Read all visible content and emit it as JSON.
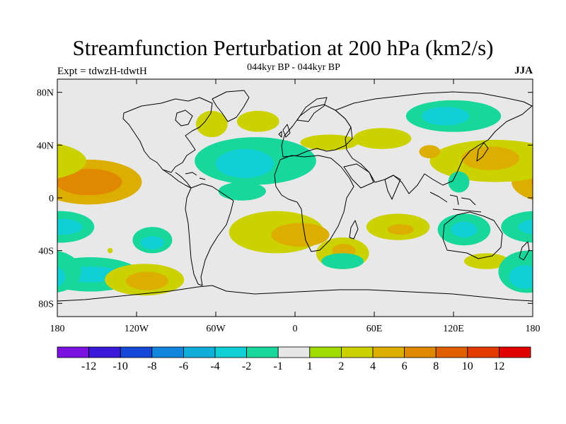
{
  "title": "Streamfunction Perturbation at 200 hPa (km2/s)",
  "subtitle": "044kyr BP - 044kyr BP",
  "experiment": "Expt = tdwzH-tdwtH",
  "season": "JJA",
  "chart_data": {
    "type": "contour_map",
    "projection": "cylindrical equidistant",
    "variable": "Streamfunction perturbation at 200 hPa",
    "units": "km2/s",
    "xlim": [
      -180,
      180
    ],
    "ylim": [
      -90,
      90
    ],
    "x_ticks": [
      {
        "value": -180,
        "label": "180"
      },
      {
        "value": -120,
        "label": "120W"
      },
      {
        "value": -60,
        "label": "60W"
      },
      {
        "value": 0,
        "label": "0"
      },
      {
        "value": 60,
        "label": "60E"
      },
      {
        "value": 120,
        "label": "120E"
      },
      {
        "value": 180,
        "label": "180"
      }
    ],
    "y_ticks": [
      {
        "value": 80,
        "label": "80N"
      },
      {
        "value": 40,
        "label": "40N"
      },
      {
        "value": 0,
        "label": "0"
      },
      {
        "value": -40,
        "label": "40S"
      },
      {
        "value": -80,
        "label": "80S"
      }
    ],
    "colorbar": {
      "labels": [
        "-12",
        "-10",
        "-8",
        "-6",
        "-4",
        "-2",
        "-1",
        "1",
        "2",
        "4",
        "6",
        "8",
        "10",
        "12"
      ],
      "colors": [
        "#7a12e0",
        "#3a18d8",
        "#1648d8",
        "#1285dd",
        "#10aedb",
        "#10cfd4",
        "#18d79a",
        "#e7e7e7",
        "#9fdc00",
        "#ccd100",
        "#dcae00",
        "#e08800",
        "#e06000",
        "#e23a00",
        "#e00000"
      ]
    },
    "anomalies": [
      {
        "lon": -156,
        "lat": 12,
        "rlon": 40,
        "rlat": 17,
        "value": 4
      },
      {
        "lon": -156,
        "lat": 12,
        "rlon": 25,
        "rlat": 10,
        "value": 6
      },
      {
        "lon": -178,
        "lat": -22,
        "rlon": 26,
        "rlat": 12,
        "value": -2
      },
      {
        "lon": -176,
        "lat": -22,
        "rlon": 15,
        "rlat": 6,
        "value": -4
      },
      {
        "lon": -155,
        "lat": -58,
        "rlon": 38,
        "rlat": 13,
        "value": -2
      },
      {
        "lon": -155,
        "lat": -58,
        "rlon": 24,
        "rlat": 6,
        "value": -4
      },
      {
        "lon": -108,
        "lat": -32,
        "rlon": 15,
        "rlat": 10,
        "value": -2
      },
      {
        "lon": -108,
        "lat": -34,
        "rlon": 9,
        "rlat": 5,
        "value": -4
      },
      {
        "lon": -114,
        "lat": -62,
        "rlon": 30,
        "rlat": 12,
        "value": 2
      },
      {
        "lon": -112,
        "lat": -63,
        "rlon": 16,
        "rlat": 7,
        "value": 4
      },
      {
        "lon": -63,
        "lat": 56,
        "rlon": 12,
        "rlat": 10,
        "value": 2
      },
      {
        "lon": -28,
        "lat": 58,
        "rlon": 16,
        "rlat": 8,
        "value": 2
      },
      {
        "lon": -30,
        "lat": 28,
        "rlon": 46,
        "rlat": 18,
        "value": -2
      },
      {
        "lon": -38,
        "lat": 26,
        "rlon": 22,
        "rlat": 11,
        "value": -4
      },
      {
        "lon": 26,
        "lat": 42,
        "rlon": 22,
        "rlat": 6,
        "value": 2
      },
      {
        "lon": -40,
        "lat": 5,
        "rlon": 18,
        "rlat": 7,
        "value": -2
      },
      {
        "lon": -14,
        "lat": -26,
        "rlon": 36,
        "rlat": 16,
        "value": 2
      },
      {
        "lon": 4,
        "lat": -28,
        "rlon": 22,
        "rlat": 9,
        "value": 4
      },
      {
        "lon": 36,
        "lat": -42,
        "rlon": 20,
        "rlat": 12,
        "value": 2
      },
      {
        "lon": 37,
        "lat": -40,
        "rlon": 9,
        "rlat": 5,
        "value": 4
      },
      {
        "lon": 36,
        "lat": -48,
        "rlon": 16,
        "rlat": 6,
        "value": -2
      },
      {
        "lon": 78,
        "lat": -22,
        "rlon": 24,
        "rlat": 10,
        "value": 2
      },
      {
        "lon": 80,
        "lat": -24,
        "rlon": 10,
        "rlat": 4,
        "value": 4
      },
      {
        "lon": 128,
        "lat": -24,
        "rlon": 20,
        "rlat": 12,
        "value": -2
      },
      {
        "lon": 128,
        "lat": -24,
        "rlon": 10,
        "rlat": 6,
        "value": -4
      },
      {
        "lon": 145,
        "lat": -48,
        "rlon": 17,
        "rlat": 6,
        "value": 2
      },
      {
        "lon": 176,
        "lat": -56,
        "rlon": 22,
        "rlat": 16,
        "value": -2
      },
      {
        "lon": 174,
        "lat": -60,
        "rlon": 12,
        "rlat": 9,
        "value": -4
      },
      {
        "lon": 120,
        "lat": 62,
        "rlon": 36,
        "rlat": 12,
        "value": -2
      },
      {
        "lon": 114,
        "lat": 62,
        "rlon": 18,
        "rlat": 7,
        "value": -4
      },
      {
        "lon": 152,
        "lat": 28,
        "rlon": 50,
        "rlat": 16,
        "value": 2
      },
      {
        "lon": 148,
        "lat": 30,
        "rlon": 22,
        "rlat": 9,
        "value": 4
      },
      {
        "lon": 66,
        "lat": 45,
        "rlon": 22,
        "rlat": 8,
        "value": 2
      },
      {
        "lon": 102,
        "lat": 35,
        "rlon": 8,
        "rlat": 5,
        "value": 4
      },
      {
        "lon": 124,
        "lat": 12,
        "rlon": 8,
        "rlat": 8,
        "value": -2
      },
      {
        "lon": -140,
        "lat": -40,
        "rlon": 2,
        "rlat": 2,
        "value": 2
      }
    ]
  }
}
